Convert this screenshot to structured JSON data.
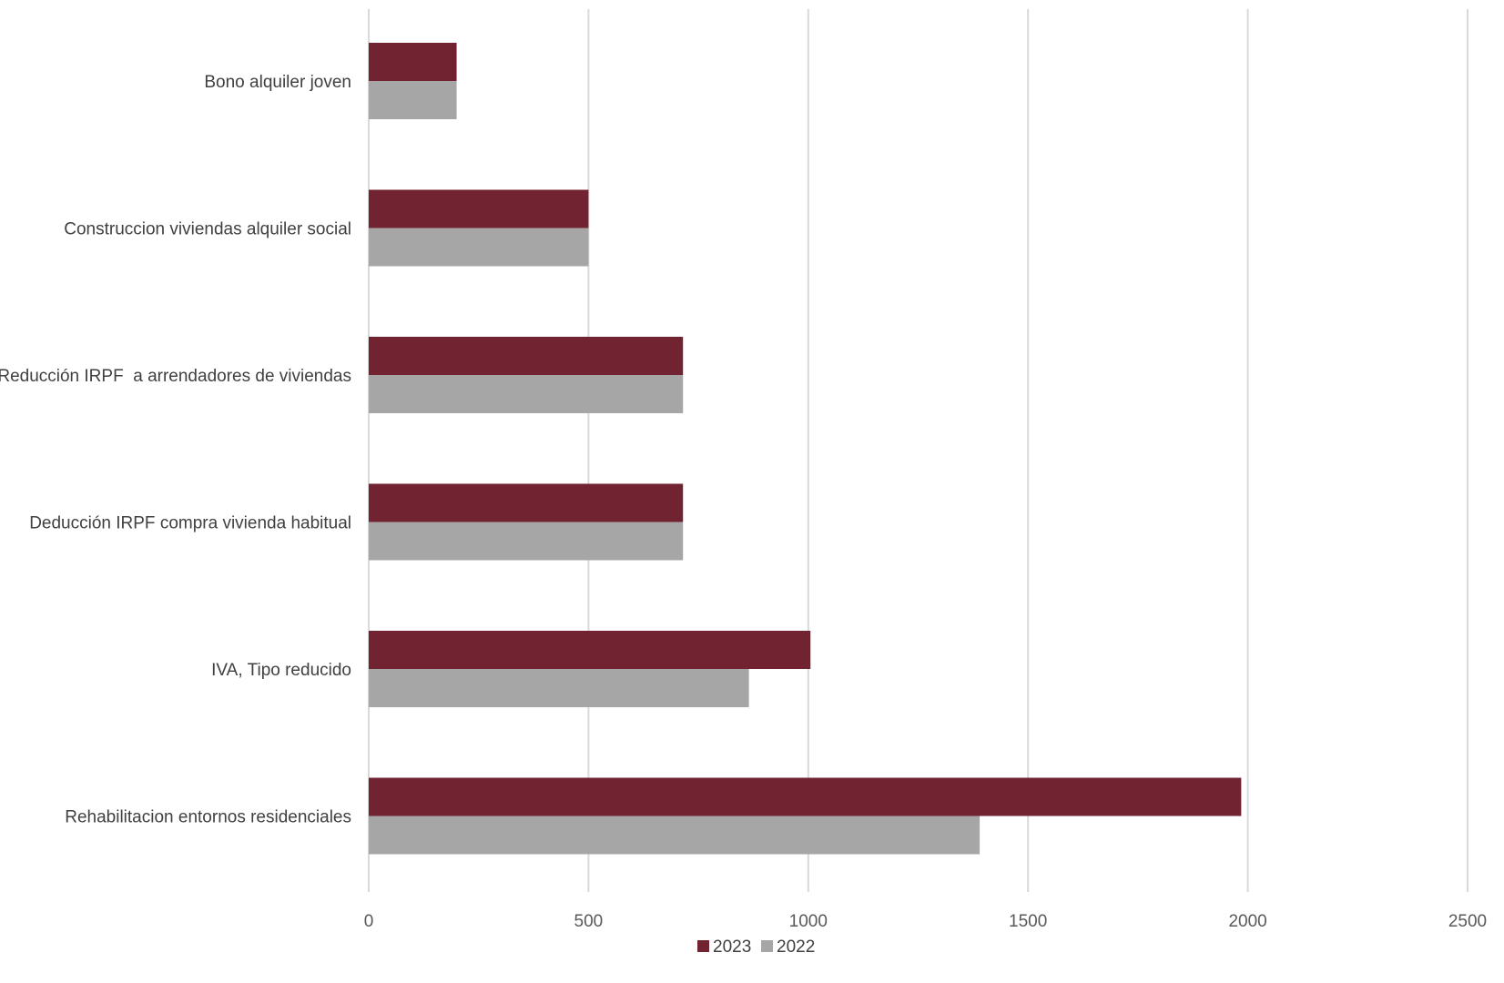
{
  "chart_data": {
    "type": "bar",
    "orientation": "horizontal",
    "categories": [
      "Bono alquiler joven",
      "Construccion viviendas alquiler social",
      "Reducción IRPF  a arrendadores de viviendas",
      "Deducción IRPF compra vivienda habitual",
      "IVA, Tipo reducido",
      "Rehabilitacion entornos residenciales"
    ],
    "series": [
      {
        "name": "2023",
        "color": "#722331",
        "values": [
          200,
          500,
          715,
          715,
          1005,
          1985
        ]
      },
      {
        "name": "2022",
        "color": "#a6a6a6",
        "values": [
          200,
          500,
          715,
          715,
          865,
          1390
        ]
      }
    ],
    "xlim": [
      0,
      2500
    ],
    "xticks": [
      "0",
      "500",
      "1000",
      "1500",
      "2000",
      "2500"
    ],
    "xtick_values": [
      0,
      500,
      1000,
      1500,
      2000,
      2500
    ],
    "grid": true,
    "legend_position": "bottom",
    "title": "",
    "xlabel": "",
    "ylabel": ""
  }
}
